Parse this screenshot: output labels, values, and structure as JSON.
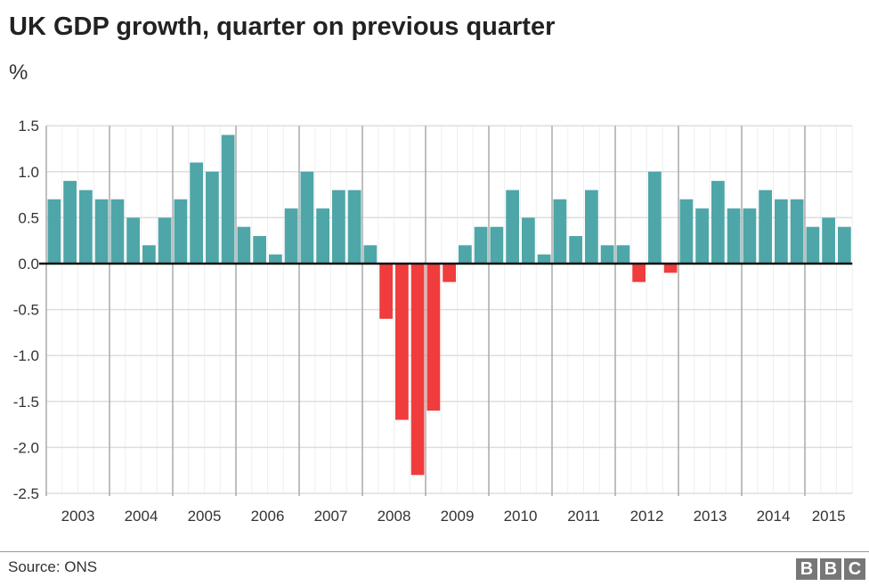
{
  "chart_data": {
    "type": "bar",
    "title": "UK GDP growth, quarter on previous quarter",
    "ylabel": "%",
    "ylim": [
      -2.5,
      1.5
    ],
    "yticks": [
      "1.5",
      "1.0",
      "0.5",
      "0.0",
      "-0.5",
      "-1.0",
      "-1.5",
      "-2.0",
      "-2.5"
    ],
    "year_labels": [
      "2003",
      "2004",
      "2005",
      "2006",
      "2007",
      "2008",
      "2009",
      "2010",
      "2011",
      "2012",
      "2013",
      "2014",
      "2015"
    ],
    "values": [
      0.7,
      0.9,
      0.8,
      0.7,
      0.7,
      0.5,
      0.2,
      0.5,
      0.7,
      1.1,
      1.0,
      1.4,
      0.4,
      0.3,
      0.1,
      0.6,
      1.0,
      0.6,
      0.8,
      0.8,
      0.2,
      -0.6,
      -1.7,
      -2.3,
      -1.6,
      -0.2,
      0.2,
      0.4,
      0.4,
      0.8,
      0.5,
      0.1,
      0.7,
      0.3,
      0.8,
      0.2,
      0.2,
      -0.2,
      1.0,
      -0.1,
      0.7,
      0.6,
      0.9,
      0.6,
      0.6,
      0.8,
      0.7,
      0.7,
      0.4,
      0.5,
      0.4
    ],
    "colors": {
      "positive": "#4ea6a8",
      "negative": "#f03c3c"
    },
    "grid": true
  },
  "footer": {
    "source": "Source: ONS",
    "logo": [
      "B",
      "B",
      "C"
    ]
  }
}
